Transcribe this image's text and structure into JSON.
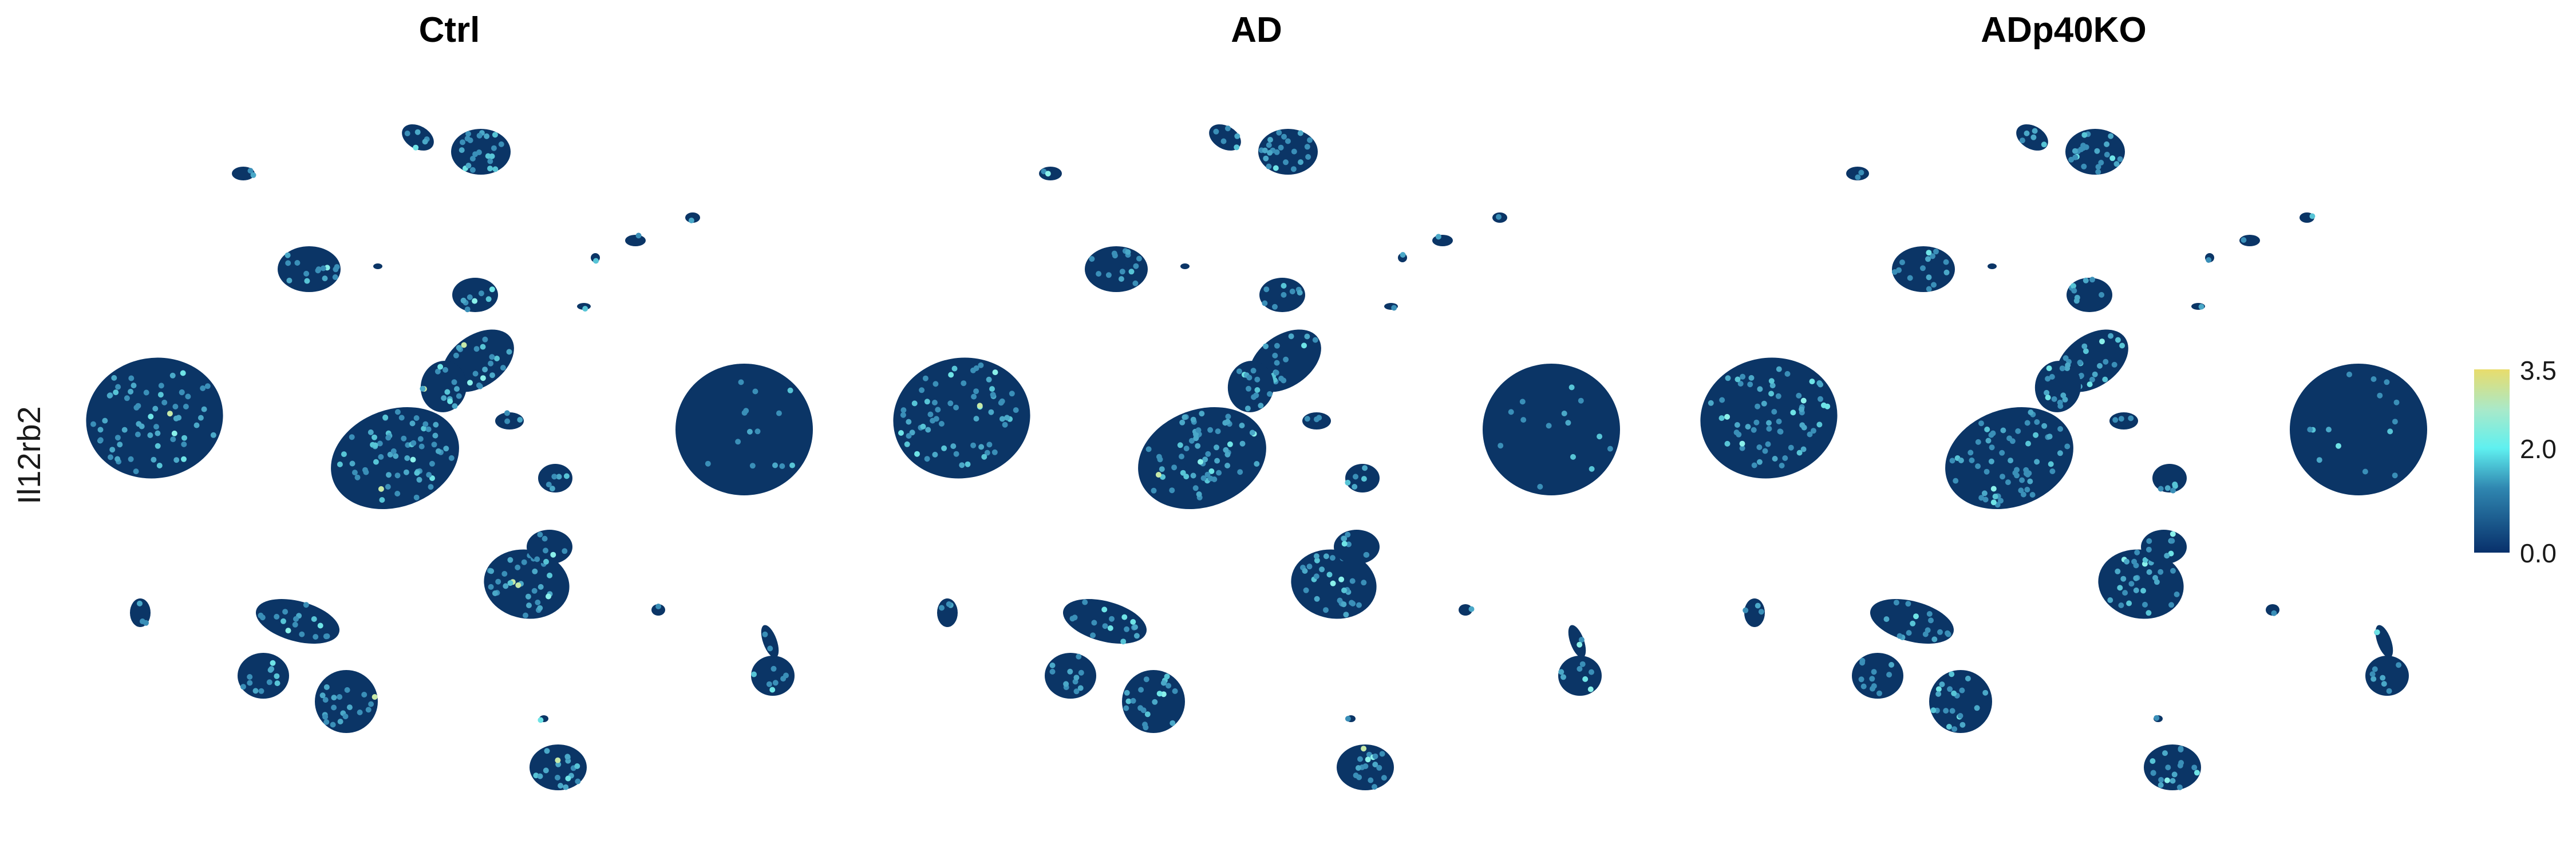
{
  "chart_data": {
    "type": "scatter",
    "plot_kind": "UMAP feature plot",
    "feature": "Il12rb2",
    "panels": [
      {
        "title": "Ctrl"
      },
      {
        "title": "AD"
      },
      {
        "title": "ADp40KO"
      }
    ],
    "color_scale": {
      "min": 0.0,
      "max": 3.5,
      "ticks": [
        {
          "value": 0.0,
          "label": "0.0"
        },
        {
          "value": 2.0,
          "label": "2.0"
        },
        {
          "value": 3.5,
          "label": "3.5"
        }
      ],
      "colors": [
        "#08306b",
        "#41b6c4",
        "#5ff0f0",
        "#e8dc6c"
      ]
    },
    "background_color": "#0b3566",
    "axes_visible": false,
    "grid": false,
    "legend_position": "right"
  }
}
